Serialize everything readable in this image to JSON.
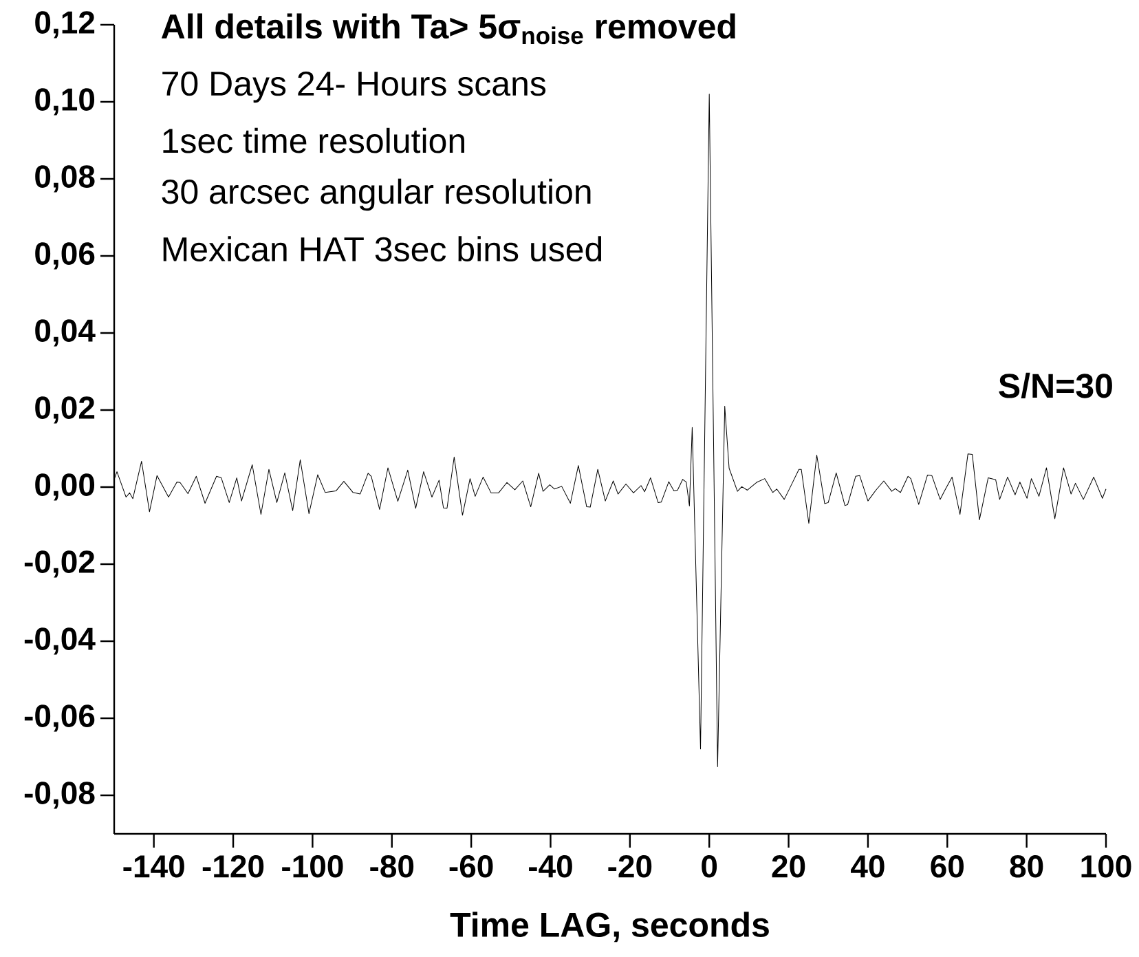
{
  "chart_data": {
    "type": "line",
    "title": "All details with Ta> 5σ$_{noise}$ removed",
    "annotations": [
      "70 Days 24- Hours scans",
      "1sec time resolution",
      "30 arcsec angular resolution",
      "Mexican HAT 3sec bins used",
      "**S/N=30**"
    ],
    "xlabel": "Time LAG, seconds",
    "color": "#000000",
    "xlim": [
      -150,
      100
    ],
    "ylim": [
      -0.09,
      0.12
    ],
    "xticks": [
      -140,
      -120,
      -100,
      -80,
      -60,
      -40,
      -20,
      0,
      20,
      40,
      60,
      80,
      100
    ],
    "yticks": [
      {
        "value": -0.08,
        "label": "-0,08"
      },
      {
        "value": -0.06,
        "label": "-0,06"
      },
      {
        "value": -0.04,
        "label": "-0,04"
      },
      {
        "value": -0.02,
        "label": "-0,02"
      },
      {
        "value": 0,
        "label": "0,00"
      },
      {
        "value": 0.02,
        "label": "0,02"
      },
      {
        "value": 0.04,
        "label": "0,04"
      },
      {
        "value": 0.06,
        "label": "0,06"
      },
      {
        "value": 0.08,
        "label": "0,08"
      },
      {
        "value": 0.1,
        "label": "0,10"
      },
      {
        "value": 0.12,
        "label": "0,12"
      }
    ],
    "x": [
      -150,
      -149.3,
      -147.0,
      -146.1,
      -145.3,
      -143.1,
      -141.1,
      -139.2,
      -136.3,
      -134.2,
      -133.4,
      -131.4,
      -129.3,
      -127.1,
      -124.2,
      -123.0,
      -121.0,
      -119.1,
      -117.9,
      -115.2,
      -113.0,
      -111.0,
      -109.0,
      -107.0,
      -105.0,
      -103.1,
      -100.9,
      -98.7,
      -96.8,
      -94.1,
      -92.1,
      -89.8,
      -88.0,
      -86.0,
      -85.2,
      -83.1,
      -81.0,
      -78.5,
      -76.0,
      -74.0,
      -72.0,
      -69.9,
      -68.1,
      -67.0,
      -66.1,
      -64.3,
      -62.2,
      -60.3,
      -59.0,
      -57.0,
      -55.0,
      -53.1,
      -51.0,
      -49.0,
      -47.0,
      -45.0,
      -43.0,
      -41.9,
      -40.2,
      -39.0,
      -37.2,
      -35.0,
      -33.0,
      -30.9,
      -30.0,
      -28.1,
      -26.2,
      -24.2,
      -23.0,
      -21.0,
      -19.1,
      -17.2,
      -16.3,
      -14.8,
      -12.9,
      -12.1,
      -10.2,
      -8.9,
      -8.0,
      -6.7,
      -5.8,
      -5.0,
      -4.3,
      -2.2,
      0,
      2.1,
      3.9,
      5.0,
      7.1,
      8.2,
      9.6,
      11.9,
      14.0,
      16.0,
      17.0,
      18.9,
      20.9,
      22.6,
      23.2,
      25.1,
      27.1,
      29.1,
      30.0,
      32.0,
      34.2,
      34.9,
      36.9,
      37.9,
      40.0,
      42.0,
      44.0,
      46.0,
      46.9,
      48.2,
      50.1,
      50.8,
      52.8,
      55.0,
      56.1,
      58.2,
      59.3,
      61.2,
      63.2,
      65.2,
      66.3,
      68.1,
      70.3,
      72.2,
      73.2,
      75.2,
      77.1,
      78.3,
      80.1,
      81.2,
      83.1,
      85.0,
      87.1,
      89.3,
      91.2,
      92.3,
      94.3,
      96.9,
      99.1,
      100
    ],
    "values": [
      0.002,
      0.004,
      -0.0026,
      -0.0015,
      -0.003,
      0.0067,
      -0.0064,
      0.003,
      -0.0026,
      0.0013,
      0.0012,
      -0.0017,
      0.0028,
      -0.0042,
      0.0028,
      0.0024,
      -0.004,
      0.0024,
      -0.0036,
      0.0058,
      -0.0071,
      0.0046,
      -0.004,
      0.0037,
      -0.0061,
      0.0071,
      -0.0069,
      0.0032,
      -0.0014,
      -0.001,
      0.0015,
      -0.0014,
      -0.0018,
      0.0036,
      0.0028,
      -0.0058,
      0.005,
      -0.0037,
      0.0044,
      -0.0055,
      0.004,
      -0.0026,
      0.0018,
      -0.0054,
      -0.0055,
      0.0078,
      -0.0073,
      0.0022,
      -0.0024,
      0.0026,
      -0.0015,
      -0.0015,
      0.0012,
      -0.0007,
      0.0016,
      -0.0051,
      0.0036,
      -0.0011,
      0.0006,
      -0.0005,
      0.0002,
      -0.0042,
      0.0056,
      -0.0051,
      -0.0052,
      0.0046,
      -0.0036,
      0.0016,
      -0.0018,
      0.0008,
      -0.0015,
      0.0004,
      -0.0012,
      0.0024,
      -0.004,
      -0.0039,
      0.0014,
      -0.001,
      -0.0008,
      0.002,
      0.0013,
      -0.0049,
      0.0155,
      -0.068,
      0.102,
      -0.0726,
      0.021,
      0.0049,
      -0.0011,
      0.0001,
      -0.0008,
      0.0012,
      0.0022,
      -0.0014,
      -0.0005,
      -0.0032,
      0.001,
      0.0046,
      0.0046,
      -0.0094,
      0.0083,
      -0.0043,
      -0.004,
      0.0037,
      -0.0048,
      -0.0045,
      0.0028,
      0.003,
      -0.0036,
      -0.0008,
      0.0016,
      -0.0011,
      -0.0004,
      -0.0014,
      0.0028,
      0.0022,
      -0.0045,
      0.0031,
      0.003,
      -0.0032,
      -0.001,
      0.0026,
      -0.0071,
      0.0086,
      0.0085,
      -0.0085,
      0.0024,
      0.0019,
      -0.0032,
      0.0026,
      -0.002,
      0.0013,
      -0.0029,
      0.0022,
      -0.0024,
      0.005,
      -0.0082,
      0.005,
      -0.0018,
      0.001,
      -0.0032,
      0.0026,
      -0.0029,
      -0.0005
    ]
  }
}
